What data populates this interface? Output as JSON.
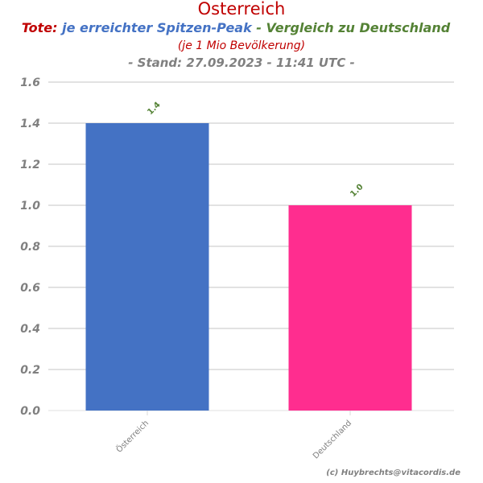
{
  "chart_data": {
    "type": "bar",
    "title": "Osterreich",
    "subtitle_parts": [
      {
        "text": "Tote:",
        "color": "#c00000"
      },
      {
        "text": " je erreichter Spitzen-Peak",
        "color": "#4472c4"
      },
      {
        "text": " - Vergleich zu Deutschland",
        "color": "#548235"
      }
    ],
    "subtitle2": "(je 1 Mio Bevölkerung)",
    "subtitle3": "- Stand: 27.09.2023 - 11:41 UTC -",
    "categories": [
      "Österreich",
      "Deutschland"
    ],
    "values": [
      1.4,
      1.0
    ],
    "data_labels": [
      "1.4",
      "1.0"
    ],
    "colors": [
      "#4472c4",
      "#ff2d8f"
    ],
    "ylim": [
      0,
      1.6
    ],
    "yticks": [
      "0.0",
      "0.2",
      "0.4",
      "0.6",
      "0.8",
      "1.0",
      "1.2",
      "1.4",
      "1.6"
    ],
    "grid": true,
    "xlabel": "",
    "ylabel": ""
  },
  "credit": "(c) Huybrechts@vitacordis.de"
}
